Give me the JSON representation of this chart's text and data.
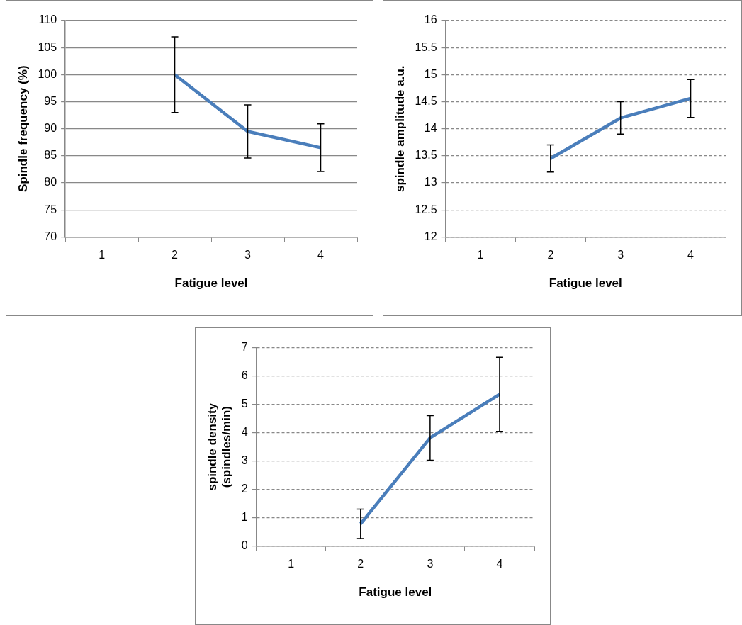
{
  "chart_data": [
    {
      "type": "line",
      "categories": [
        "1",
        "2",
        "3",
        "4"
      ],
      "xlabel": "Fatigue level",
      "ylabel": "Spindle frequency (%)",
      "ylim": [
        70,
        110
      ],
      "yticks": [
        70,
        75,
        80,
        85,
        90,
        95,
        100,
        105,
        110
      ],
      "grid": "y",
      "marker": "none",
      "series": [
        {
          "color": "#4a7ebb",
          "values": [
            null,
            100,
            89.5,
            86.5
          ],
          "errors": [
            null,
            7,
            4.9,
            4.4
          ]
        }
      ]
    },
    {
      "type": "line",
      "categories": [
        "1",
        "2",
        "3",
        "4"
      ],
      "xlabel": "Fatigue level",
      "ylabel": "spindle amplitude a.u.",
      "ylim": [
        12,
        16
      ],
      "yticks": [
        12,
        12.5,
        13,
        13.5,
        14,
        14.5,
        15,
        15.5,
        16
      ],
      "grid": "y",
      "marker": "none",
      "series": [
        {
          "color": "#4a7ebb",
          "values": [
            null,
            13.45,
            14.2,
            14.56
          ],
          "errors": [
            null,
            0.25,
            0.3,
            0.35
          ]
        }
      ]
    },
    {
      "type": "line",
      "categories": [
        "1",
        "2",
        "3",
        "4"
      ],
      "xlabel": "Fatigue level",
      "ylabel": "spindle density\n(spindles/min)",
      "ylim": [
        0,
        7
      ],
      "yticks": [
        0,
        1,
        2,
        3,
        4,
        5,
        6,
        7
      ],
      "grid": "y",
      "marker": "none",
      "series": [
        {
          "color": "#4a7ebb",
          "values": [
            null,
            0.78,
            3.82,
            5.36
          ],
          "errors": [
            null,
            0.52,
            0.79,
            1.31
          ]
        }
      ]
    }
  ]
}
